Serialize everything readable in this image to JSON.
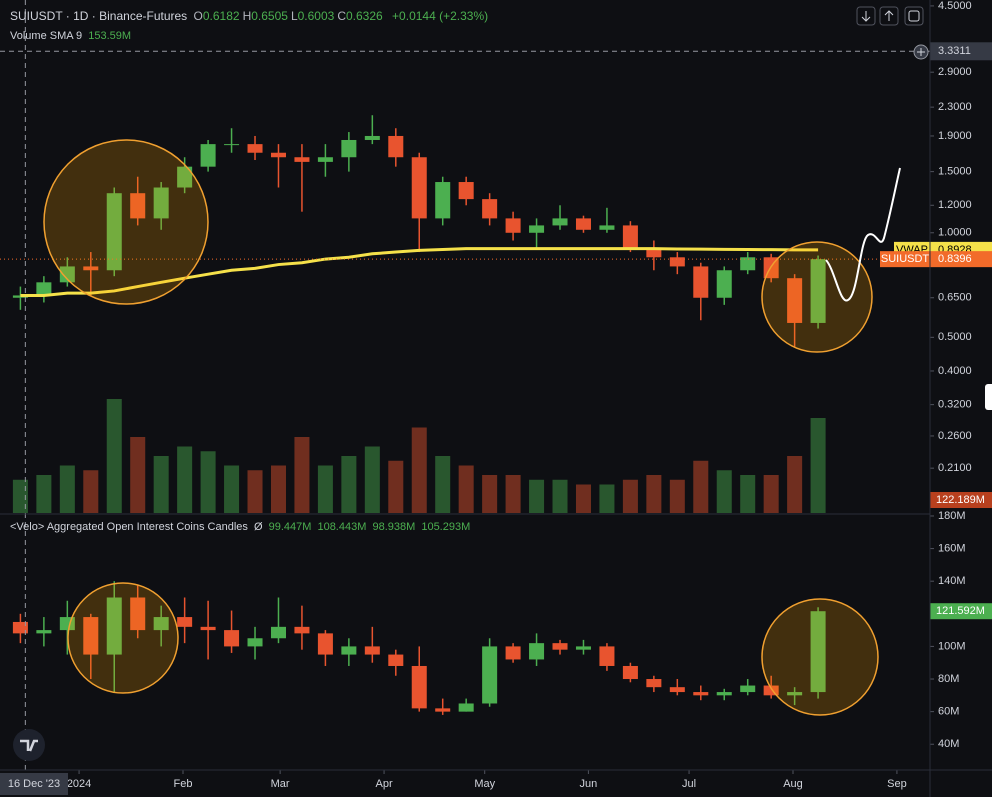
{
  "header": {
    "symbol": "SUIUSDT · 1D · Binance-Futures",
    "ohlc": [
      {
        "key": "O",
        "value": "0.6182"
      },
      {
        "key": "H",
        "value": "0.6505"
      },
      {
        "key": "L",
        "value": "0.6003"
      },
      {
        "key": "C",
        "value": "0.6326"
      }
    ],
    "change": "+0.0144 (+2.33%)",
    "volume_label": "Volume SMA 9",
    "volume_value": "153.59M"
  },
  "chart_data": [
    {
      "type": "candlestick",
      "log_scale": true,
      "grid": false,
      "up_color": "#4caf50",
      "down_color": "#e8542f",
      "x": [
        0,
        1,
        2,
        3,
        4,
        5,
        6,
        7,
        8,
        9,
        10,
        11,
        12,
        13,
        14,
        15,
        16,
        17,
        18,
        19,
        20,
        21,
        22,
        23,
        24,
        25,
        26,
        27,
        28,
        29,
        30,
        31,
        32,
        33,
        34
      ],
      "open": [
        0.65,
        0.66,
        0.72,
        0.8,
        0.78,
        1.3,
        1.1,
        1.35,
        1.55,
        1.8,
        1.8,
        1.7,
        1.65,
        1.6,
        1.65,
        1.85,
        1.9,
        1.65,
        1.1,
        1.4,
        1.25,
        1.1,
        1.0,
        1.05,
        1.1,
        1.02,
        1.05,
        0.9,
        0.85,
        0.8,
        0.65,
        0.78,
        0.85,
        0.74,
        0.55
      ],
      "high": [
        0.7,
        0.75,
        0.85,
        0.88,
        1.35,
        1.45,
        1.4,
        1.65,
        1.85,
        2.0,
        1.9,
        1.8,
        1.8,
        1.8,
        1.95,
        2.18,
        2.0,
        1.7,
        1.45,
        1.45,
        1.3,
        1.15,
        1.1,
        1.2,
        1.12,
        1.18,
        1.08,
        0.95,
        0.88,
        0.82,
        0.8,
        0.88,
        0.87,
        0.76,
        0.86
      ],
      "low": [
        0.6,
        0.63,
        0.7,
        0.66,
        0.75,
        1.05,
        1.02,
        1.3,
        1.5,
        1.7,
        1.62,
        1.35,
        1.15,
        1.45,
        1.5,
        1.8,
        1.55,
        0.88,
        1.05,
        1.2,
        1.05,
        0.95,
        0.9,
        1.02,
        1.0,
        1.0,
        0.88,
        0.78,
        0.76,
        0.56,
        0.62,
        0.76,
        0.72,
        0.47,
        0.53
      ],
      "close": [
        0.66,
        0.72,
        0.8,
        0.78,
        1.3,
        1.1,
        1.35,
        1.55,
        1.8,
        1.8,
        1.7,
        1.65,
        1.6,
        1.65,
        1.85,
        1.9,
        1.65,
        1.1,
        1.4,
        1.25,
        1.1,
        1.0,
        1.05,
        1.1,
        1.02,
        1.05,
        0.9,
        0.85,
        0.8,
        0.65,
        0.78,
        0.85,
        0.74,
        0.55,
        0.8396
      ],
      "xlim": [
        -0.37,
        39.27
      ],
      "ylim": [
        0.156,
        4.68
      ],
      "xticks": [
        {
          "value": 3,
          "label": "2024"
        },
        {
          "value": 7.43,
          "label": "Feb"
        },
        {
          "value": 11.57,
          "label": "Mar"
        },
        {
          "value": 16,
          "label": "Apr"
        },
        {
          "value": 20.29,
          "label": "May"
        },
        {
          "value": 24.71,
          "label": "Jun"
        },
        {
          "value": 29,
          "label": "Jul"
        },
        {
          "value": 33.43,
          "label": "Aug"
        },
        {
          "value": 37.86,
          "label": "Sep"
        }
      ],
      "yticks": [
        {
          "value": 4.5,
          "label": "4.5000"
        },
        {
          "value": 2.9,
          "label": "2.9000"
        },
        {
          "value": 2.3,
          "label": "2.3000"
        },
        {
          "value": 1.9,
          "label": "1.9000"
        },
        {
          "value": 1.5,
          "label": "1.5000"
        },
        {
          "value": 1.2,
          "label": "1.2000"
        },
        {
          "value": 1.0,
          "label": "1.0000"
        },
        {
          "value": 0.65,
          "label": "0.6500"
        },
        {
          "value": 0.5,
          "label": "0.5000"
        },
        {
          "value": 0.4,
          "label": "0.4000"
        },
        {
          "value": 0.32,
          "label": "0.3200"
        },
        {
          "value": 0.26,
          "label": "0.2600"
        },
        {
          "value": 0.21,
          "label": "0.2100"
        }
      ],
      "crosshair": {
        "x": {
          "value": 0.71,
          "label": "16 Dec '23"
        },
        "y": 3.3311
      },
      "vwap": {
        "name": "VWAP",
        "color": "#f5e14a",
        "values": [
          0.66,
          0.66,
          0.67,
          0.67,
          0.68,
          0.7,
          0.72,
          0.74,
          0.76,
          0.78,
          0.79,
          0.81,
          0.82,
          0.84,
          0.85,
          0.87,
          0.88,
          0.89,
          0.895,
          0.9,
          0.9,
          0.9,
          0.9,
          0.9,
          0.9,
          0.9,
          0.9,
          0.9,
          0.898,
          0.897,
          0.896,
          0.895,
          0.894,
          0.893,
          0.8928
        ]
      },
      "last_price": {
        "name": "SUIUSDT",
        "color": "#f26b2a"
      },
      "volume": {
        "values": [
          350,
          400,
          500,
          450,
          1200,
          800,
          600,
          700,
          650,
          500,
          450,
          500,
          800,
          500,
          600,
          700,
          550,
          900,
          600,
          500,
          400,
          400,
          350,
          350,
          300,
          300,
          350,
          400,
          350,
          550,
          450,
          400,
          400,
          600,
          1000
        ],
        "ylim": [
          0,
          5400
        ],
        "last_label": "122.189M"
      }
    },
    {
      "type": "candlestick",
      "grid": false,
      "title": "<Velo> Aggregated Open Interest Coins Candles",
      "symbol": "Ø",
      "legend_values": [
        "99.447M",
        "108.443M",
        "98.938M",
        "105.293M"
      ],
      "up_color": "#4caf50",
      "down_color": "#e8542f",
      "open": [
        115,
        108,
        110,
        118,
        95,
        130,
        110,
        118,
        112,
        110,
        100,
        105,
        112,
        108,
        95,
        100,
        95,
        88,
        62,
        60,
        65,
        100,
        92,
        102,
        98,
        100,
        88,
        80,
        75,
        72,
        70,
        72,
        76,
        70,
        72
      ],
      "high": [
        120,
        118,
        128,
        120,
        140,
        138,
        125,
        130,
        128,
        122,
        112,
        130,
        125,
        110,
        105,
        112,
        98,
        100,
        68,
        68,
        105,
        102,
        108,
        104,
        104,
        102,
        90,
        82,
        80,
        76,
        74,
        80,
        82,
        75,
        124
      ],
      "low": [
        102,
        100,
        95,
        80,
        72,
        105,
        100,
        102,
        92,
        96,
        92,
        102,
        98,
        88,
        88,
        90,
        82,
        60,
        58,
        60,
        63,
        90,
        88,
        95,
        95,
        85,
        78,
        72,
        70,
        67,
        67,
        70,
        68,
        64,
        68
      ],
      "close": [
        108,
        110,
        118,
        95,
        130,
        110,
        118,
        112,
        110,
        100,
        105,
        112,
        108,
        95,
        100,
        95,
        88,
        62,
        60,
        65,
        100,
        92,
        102,
        98,
        100,
        88,
        80,
        75,
        72,
        70,
        72,
        76,
        70,
        72,
        121.592
      ],
      "close_labels_last": "121.592M",
      "ylim": [
        24.2,
        180.6
      ],
      "yticks": [
        {
          "value": 180,
          "label": "180M"
        },
        {
          "value": 160,
          "label": "160M"
        },
        {
          "value": 140,
          "label": "140M"
        },
        {
          "value": 100,
          "label": "100M"
        },
        {
          "value": 80,
          "label": "80M"
        },
        {
          "value": 60,
          "label": "60M"
        },
        {
          "value": 40,
          "label": "40M"
        }
      ]
    }
  ]
}
